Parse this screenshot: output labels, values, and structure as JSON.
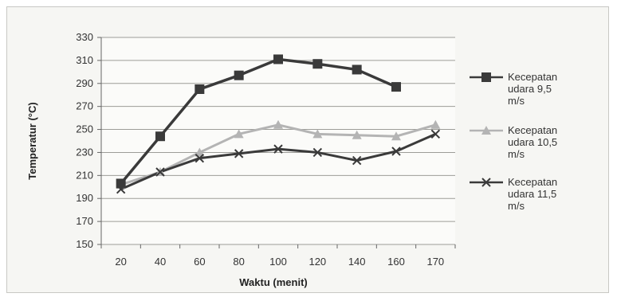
{
  "chart_data": {
    "type": "line",
    "categories": [
      "20",
      "40",
      "60",
      "80",
      "100",
      "120",
      "140",
      "160",
      "170"
    ],
    "ylabel": "Temperatur (°C)",
    "xlabel": "Waktu (menit)",
    "ylim": [
      150,
      330
    ],
    "yticks": [
      "150",
      "170",
      "190",
      "210",
      "230",
      "250",
      "270",
      "290",
      "310",
      "330"
    ],
    "grid": "horizontal",
    "legend_position": "right",
    "series": [
      {
        "name_lines": [
          "Kecepatan",
          "udara 9,5",
          "m/s"
        ],
        "color": "#3a3a3a",
        "marker": "square",
        "values": [
          203,
          244,
          285,
          297,
          311,
          307,
          302,
          287,
          null
        ]
      },
      {
        "name_lines": [
          "Kecepatan",
          "udara 10,5",
          "m/s"
        ],
        "color": "#b4b4b4",
        "marker": "triangle",
        "values": [
          202,
          213,
          230,
          246,
          254,
          246,
          245,
          244,
          254
        ]
      },
      {
        "name_lines": [
          "Kecepatan",
          "udara 11,5",
          "m/s"
        ],
        "color": "#3a3a3a",
        "marker": "x",
        "values": [
          198,
          213,
          225,
          229,
          233,
          230,
          223,
          231,
          246
        ]
      }
    ]
  }
}
